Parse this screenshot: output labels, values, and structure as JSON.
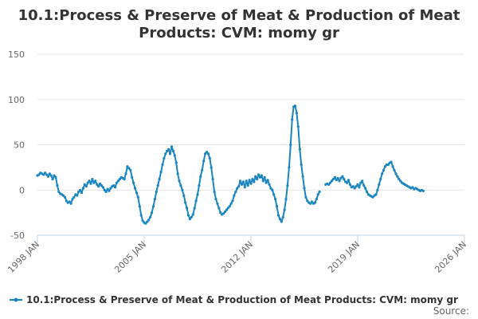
{
  "chart_data": {
    "type": "line",
    "title_lines": [
      "10.1:Process & Preserve of Meat & Production of Meat",
      "Products: CVM: momy gr"
    ],
    "ylim": [
      -50,
      150
    ],
    "y_ticks": [
      {
        "value": 150,
        "label": "150"
      },
      {
        "value": 100,
        "label": "100"
      },
      {
        "value": 50,
        "label": "50"
      },
      {
        "value": 0,
        "label": "0"
      },
      {
        "value": -50,
        "label": "-50"
      }
    ],
    "xlim": [
      1998.0,
      2026.0
    ],
    "x_ticks": [
      {
        "value": 1998,
        "label": "1998 JAN"
      },
      {
        "value": 2005,
        "label": "2005 JAN"
      },
      {
        "value": 2012,
        "label": "2012 JAN"
      },
      {
        "value": 2019,
        "label": "2019 JAN"
      },
      {
        "value": 2026,
        "label": "2026 JAN"
      }
    ],
    "series": [
      {
        "name": "10.1:Process & Preserve of Meat & Production of Meat Products: CVM: momy gr",
        "color": "#1a85c0",
        "segments": [
          [
            [
              1998.0,
              16
            ],
            [
              1998.1,
              17
            ],
            [
              1998.2,
              19
            ],
            [
              1998.3,
              18
            ],
            [
              1998.4,
              17
            ],
            [
              1998.5,
              19
            ],
            [
              1998.6,
              17
            ],
            [
              1998.7,
              15
            ],
            [
              1998.8,
              18
            ],
            [
              1998.9,
              16
            ],
            [
              1999.0,
              12
            ],
            [
              1999.1,
              16
            ],
            [
              1999.2,
              14
            ],
            [
              1999.3,
              5
            ],
            [
              1999.4,
              -2
            ],
            [
              1999.5,
              -4
            ],
            [
              1999.6,
              -5
            ],
            [
              1999.7,
              -6
            ],
            [
              1999.8,
              -8
            ],
            [
              1999.9,
              -12
            ],
            [
              2000.0,
              -14
            ],
            [
              2000.1,
              -13
            ],
            [
              2000.2,
              -15
            ],
            [
              2000.3,
              -10
            ],
            [
              2000.4,
              -8
            ],
            [
              2000.5,
              -5
            ],
            [
              2000.6,
              -6
            ],
            [
              2000.7,
              -2
            ],
            [
              2000.8,
              0
            ],
            [
              2000.9,
              -3
            ],
            [
              2001.0,
              2
            ],
            [
              2001.1,
              6
            ],
            [
              2001.2,
              4
            ],
            [
              2001.3,
              8
            ],
            [
              2001.4,
              10
            ],
            [
              2001.5,
              7
            ],
            [
              2001.6,
              12
            ],
            [
              2001.7,
              8
            ],
            [
              2001.8,
              10
            ],
            [
              2001.9,
              6
            ],
            [
              2002.0,
              4
            ],
            [
              2002.1,
              7
            ],
            [
              2002.2,
              5
            ],
            [
              2002.3,
              3
            ],
            [
              2002.4,
              0
            ],
            [
              2002.5,
              -2
            ],
            [
              2002.6,
              1
            ],
            [
              2002.7,
              -1
            ],
            [
              2002.8,
              2
            ],
            [
              2002.9,
              4
            ],
            [
              2003.0,
              5
            ],
            [
              2003.1,
              3
            ],
            [
              2003.2,
              8
            ],
            [
              2003.3,
              10
            ],
            [
              2003.4,
              12
            ],
            [
              2003.5,
              14
            ],
            [
              2003.6,
              13
            ],
            [
              2003.7,
              12
            ],
            [
              2003.8,
              18
            ],
            [
              2003.9,
              26
            ],
            [
              2004.0,
              24
            ],
            [
              2004.1,
              22
            ],
            [
              2004.2,
              14
            ],
            [
              2004.3,
              8
            ],
            [
              2004.4,
              2
            ],
            [
              2004.5,
              -3
            ],
            [
              2004.6,
              -8
            ],
            [
              2004.7,
              -18
            ],
            [
              2004.8,
              -28
            ],
            [
              2004.9,
              -34
            ],
            [
              2005.0,
              -36
            ],
            [
              2005.1,
              -37
            ],
            [
              2005.2,
              -35
            ],
            [
              2005.3,
              -33
            ],
            [
              2005.4,
              -30
            ],
            [
              2005.5,
              -25
            ],
            [
              2005.6,
              -18
            ],
            [
              2005.7,
              -10
            ],
            [
              2005.8,
              -2
            ],
            [
              2005.9,
              5
            ],
            [
              2006.0,
              12
            ],
            [
              2006.1,
              20
            ],
            [
              2006.2,
              28
            ],
            [
              2006.3,
              35
            ],
            [
              2006.4,
              40
            ],
            [
              2006.5,
              43
            ],
            [
              2006.6,
              45
            ],
            [
              2006.7,
              40
            ],
            [
              2006.8,
              48
            ],
            [
              2006.9,
              43
            ],
            [
              2007.0,
              38
            ],
            [
              2007.1,
              30
            ],
            [
              2007.2,
              18
            ],
            [
              2007.3,
              10
            ],
            [
              2007.4,
              5
            ],
            [
              2007.5,
              0
            ],
            [
              2007.6,
              -6
            ],
            [
              2007.7,
              -14
            ],
            [
              2007.8,
              -20
            ],
            [
              2007.9,
              -28
            ],
            [
              2008.0,
              -32
            ],
            [
              2008.1,
              -30
            ],
            [
              2008.2,
              -27
            ],
            [
              2008.3,
              -20
            ],
            [
              2008.4,
              -12
            ],
            [
              2008.5,
              -5
            ],
            [
              2008.6,
              5
            ],
            [
              2008.7,
              15
            ],
            [
              2008.8,
              22
            ],
            [
              2008.9,
              32
            ],
            [
              2009.0,
              40
            ],
            [
              2009.1,
              42
            ],
            [
              2009.2,
              40
            ],
            [
              2009.3,
              35
            ],
            [
              2009.4,
              25
            ],
            [
              2009.5,
              12
            ],
            [
              2009.6,
              -2
            ],
            [
              2009.7,
              -10
            ],
            [
              2009.8,
              -15
            ],
            [
              2009.9,
              -20
            ],
            [
              2010.0,
              -25
            ],
            [
              2010.1,
              -27
            ],
            [
              2010.2,
              -26
            ],
            [
              2010.3,
              -24
            ],
            [
              2010.4,
              -22
            ],
            [
              2010.5,
              -20
            ],
            [
              2010.6,
              -18
            ],
            [
              2010.7,
              -15
            ],
            [
              2010.8,
              -12
            ],
            [
              2010.9,
              -6
            ],
            [
              2011.0,
              -2
            ],
            [
              2011.1,
              2
            ],
            [
              2011.2,
              4
            ],
            [
              2011.3,
              10
            ],
            [
              2011.4,
              6
            ],
            [
              2011.5,
              9
            ],
            [
              2011.6,
              3
            ],
            [
              2011.7,
              10
            ],
            [
              2011.8,
              5
            ],
            [
              2011.9,
              11
            ],
            [
              2012.0,
              7
            ],
            [
              2012.1,
              12
            ],
            [
              2012.2,
              9
            ],
            [
              2012.3,
              15
            ],
            [
              2012.4,
              12
            ],
            [
              2012.5,
              17
            ],
            [
              2012.6,
              14
            ],
            [
              2012.7,
              16
            ],
            [
              2012.8,
              10
            ],
            [
              2012.9,
              14
            ],
            [
              2013.0,
              8
            ],
            [
              2013.1,
              11
            ],
            [
              2013.2,
              6
            ],
            [
              2013.3,
              2
            ],
            [
              2013.4,
              0
            ],
            [
              2013.5,
              -5
            ],
            [
              2013.6,
              -10
            ],
            [
              2013.7,
              -18
            ],
            [
              2013.8,
              -28
            ],
            [
              2013.9,
              -32
            ],
            [
              2014.0,
              -35
            ],
            [
              2014.1,
              -30
            ],
            [
              2014.2,
              -22
            ],
            [
              2014.3,
              -10
            ],
            [
              2014.4,
              5
            ],
            [
              2014.5,
              25
            ],
            [
              2014.6,
              50
            ],
            [
              2014.7,
              78
            ],
            [
              2014.8,
              92
            ],
            [
              2014.9,
              93
            ],
            [
              2015.0,
              85
            ],
            [
              2015.1,
              70
            ],
            [
              2015.2,
              45
            ],
            [
              2015.3,
              28
            ],
            [
              2015.4,
              15
            ],
            [
              2015.5,
              2
            ],
            [
              2015.6,
              -8
            ],
            [
              2015.7,
              -12
            ],
            [
              2015.8,
              -14
            ],
            [
              2015.9,
              -15
            ],
            [
              2016.0,
              -13
            ],
            [
              2016.1,
              -15
            ],
            [
              2016.2,
              -14
            ],
            [
              2016.3,
              -10
            ],
            [
              2016.4,
              -5
            ],
            [
              2016.5,
              -2
            ]
          ],
          [
            [
              2016.9,
              6
            ],
            [
              2017.0,
              7
            ],
            [
              2017.1,
              6
            ],
            [
              2017.2,
              8
            ],
            [
              2017.3,
              10
            ],
            [
              2017.4,
              12
            ],
            [
              2017.5,
              14
            ],
            [
              2017.6,
              11
            ],
            [
              2017.7,
              13
            ],
            [
              2017.8,
              10
            ],
            [
              2017.9,
              13
            ],
            [
              2018.0,
              15
            ],
            [
              2018.1,
              12
            ],
            [
              2018.2,
              9
            ],
            [
              2018.3,
              8
            ],
            [
              2018.4,
              11
            ],
            [
              2018.5,
              6
            ],
            [
              2018.6,
              3
            ],
            [
              2018.7,
              4
            ],
            [
              2018.8,
              2
            ],
            [
              2018.9,
              4
            ],
            [
              2019.0,
              6
            ],
            [
              2019.1,
              3
            ],
            [
              2019.2,
              8
            ],
            [
              2019.3,
              10
            ],
            [
              2019.4,
              5
            ],
            [
              2019.5,
              2
            ],
            [
              2019.6,
              -2
            ],
            [
              2019.7,
              -5
            ],
            [
              2019.8,
              -6
            ],
            [
              2019.9,
              -7
            ],
            [
              2020.0,
              -8
            ],
            [
              2020.1,
              -6
            ],
            [
              2020.2,
              -5
            ],
            [
              2020.3,
              0
            ],
            [
              2020.4,
              6
            ],
            [
              2020.5,
              12
            ],
            [
              2020.6,
              18
            ],
            [
              2020.7,
              22
            ],
            [
              2020.8,
              26
            ],
            [
              2020.9,
              28
            ],
            [
              2021.0,
              28
            ],
            [
              2021.1,
              30
            ],
            [
              2021.2,
              31
            ],
            [
              2021.3,
              26
            ],
            [
              2021.4,
              22
            ],
            [
              2021.5,
              18
            ],
            [
              2021.6,
              15
            ],
            [
              2021.7,
              12
            ],
            [
              2021.8,
              10
            ],
            [
              2021.9,
              8
            ],
            [
              2022.0,
              7
            ],
            [
              2022.1,
              6
            ],
            [
              2022.2,
              5
            ],
            [
              2022.3,
              4
            ],
            [
              2022.4,
              3
            ],
            [
              2022.5,
              2
            ],
            [
              2022.6,
              3
            ],
            [
              2022.7,
              1
            ],
            [
              2022.8,
              2
            ],
            [
              2022.9,
              1
            ],
            [
              2023.0,
              0
            ],
            [
              2023.1,
              -1
            ],
            [
              2023.2,
              0
            ],
            [
              2023.3,
              -1
            ]
          ]
        ]
      }
    ],
    "legend_label": "10.1:Process & Preserve of Meat & Production of Meat Products: CVM: momy gr",
    "source_label": "Source:"
  }
}
